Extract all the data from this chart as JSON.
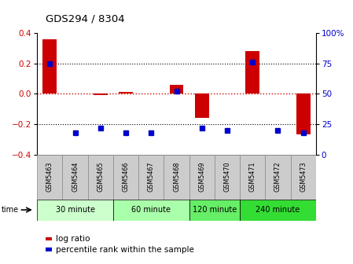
{
  "title": "GDS294 / 8304",
  "samples": [
    "GSM5463",
    "GSM5464",
    "GSM5465",
    "GSM5466",
    "GSM5467",
    "GSM5468",
    "GSM5469",
    "GSM5470",
    "GSM5471",
    "GSM5472",
    "GSM5473"
  ],
  "log_ratio": [
    0.36,
    0.0,
    -0.01,
    0.01,
    0.0,
    0.06,
    -0.16,
    0.0,
    0.28,
    0.0,
    -0.27
  ],
  "percentile": [
    75,
    18,
    22,
    18,
    18,
    52,
    22,
    20,
    76,
    20,
    18
  ],
  "groups": [
    {
      "label": "30 minute",
      "start": 0,
      "end": 2,
      "color": "#ccffcc"
    },
    {
      "label": "60 minute",
      "start": 3,
      "end": 5,
      "color": "#aaffaa"
    },
    {
      "label": "120 minute",
      "start": 6,
      "end": 7,
      "color": "#66ee66"
    },
    {
      "label": "240 minute",
      "start": 8,
      "end": 10,
      "color": "#33dd33"
    }
  ],
  "ylim_left": [
    -0.4,
    0.4
  ],
  "ylim_right": [
    0,
    100
  ],
  "yticks_left": [
    -0.4,
    -0.2,
    0.0,
    0.2,
    0.4
  ],
  "yticks_right": [
    0,
    25,
    50,
    75,
    100
  ],
  "bar_color": "#cc0000",
  "dot_color": "#0000cc",
  "zero_line_color": "#cc0000",
  "bg_color": "#ffffff",
  "tick_label_color_left": "#cc0000",
  "tick_label_color_right": "#0000cc",
  "cell_color": "#cccccc",
  "cell_edge": "#888888",
  "time_label": "time",
  "legend_log": "log ratio",
  "legend_pct": "percentile rank within the sample"
}
